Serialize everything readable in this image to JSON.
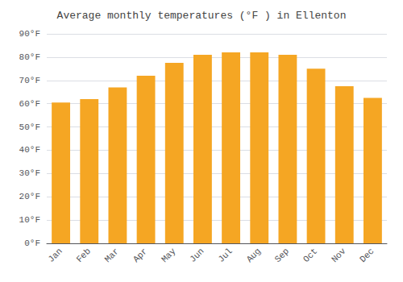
{
  "chart_data": {
    "type": "bar",
    "title": "Average monthly temperatures (°F ) in Ellenton",
    "categories": [
      "Jan",
      "Feb",
      "Mar",
      "Apr",
      "May",
      "Jun",
      "Jul",
      "Aug",
      "Sep",
      "Oct",
      "Nov",
      "Dec"
    ],
    "values": [
      60.5,
      62,
      67,
      72,
      77.5,
      81,
      82,
      82,
      81,
      75,
      67.5,
      62.5
    ],
    "color": "#F5A623",
    "ylim": [
      0,
      90
    ],
    "yticks": [
      {
        "value": 0,
        "label": "0°F"
      },
      {
        "value": 10,
        "label": "10°F"
      },
      {
        "value": 20,
        "label": "20°F"
      },
      {
        "value": 30,
        "label": "30°F"
      },
      {
        "value": 40,
        "label": "40°F"
      },
      {
        "value": 50,
        "label": "50°F"
      },
      {
        "value": 60,
        "label": "60°F"
      },
      {
        "value": 70,
        "label": "70°F"
      },
      {
        "value": 80,
        "label": "80°F"
      },
      {
        "value": 90,
        "label": "90°F"
      }
    ],
    "grid": true
  }
}
